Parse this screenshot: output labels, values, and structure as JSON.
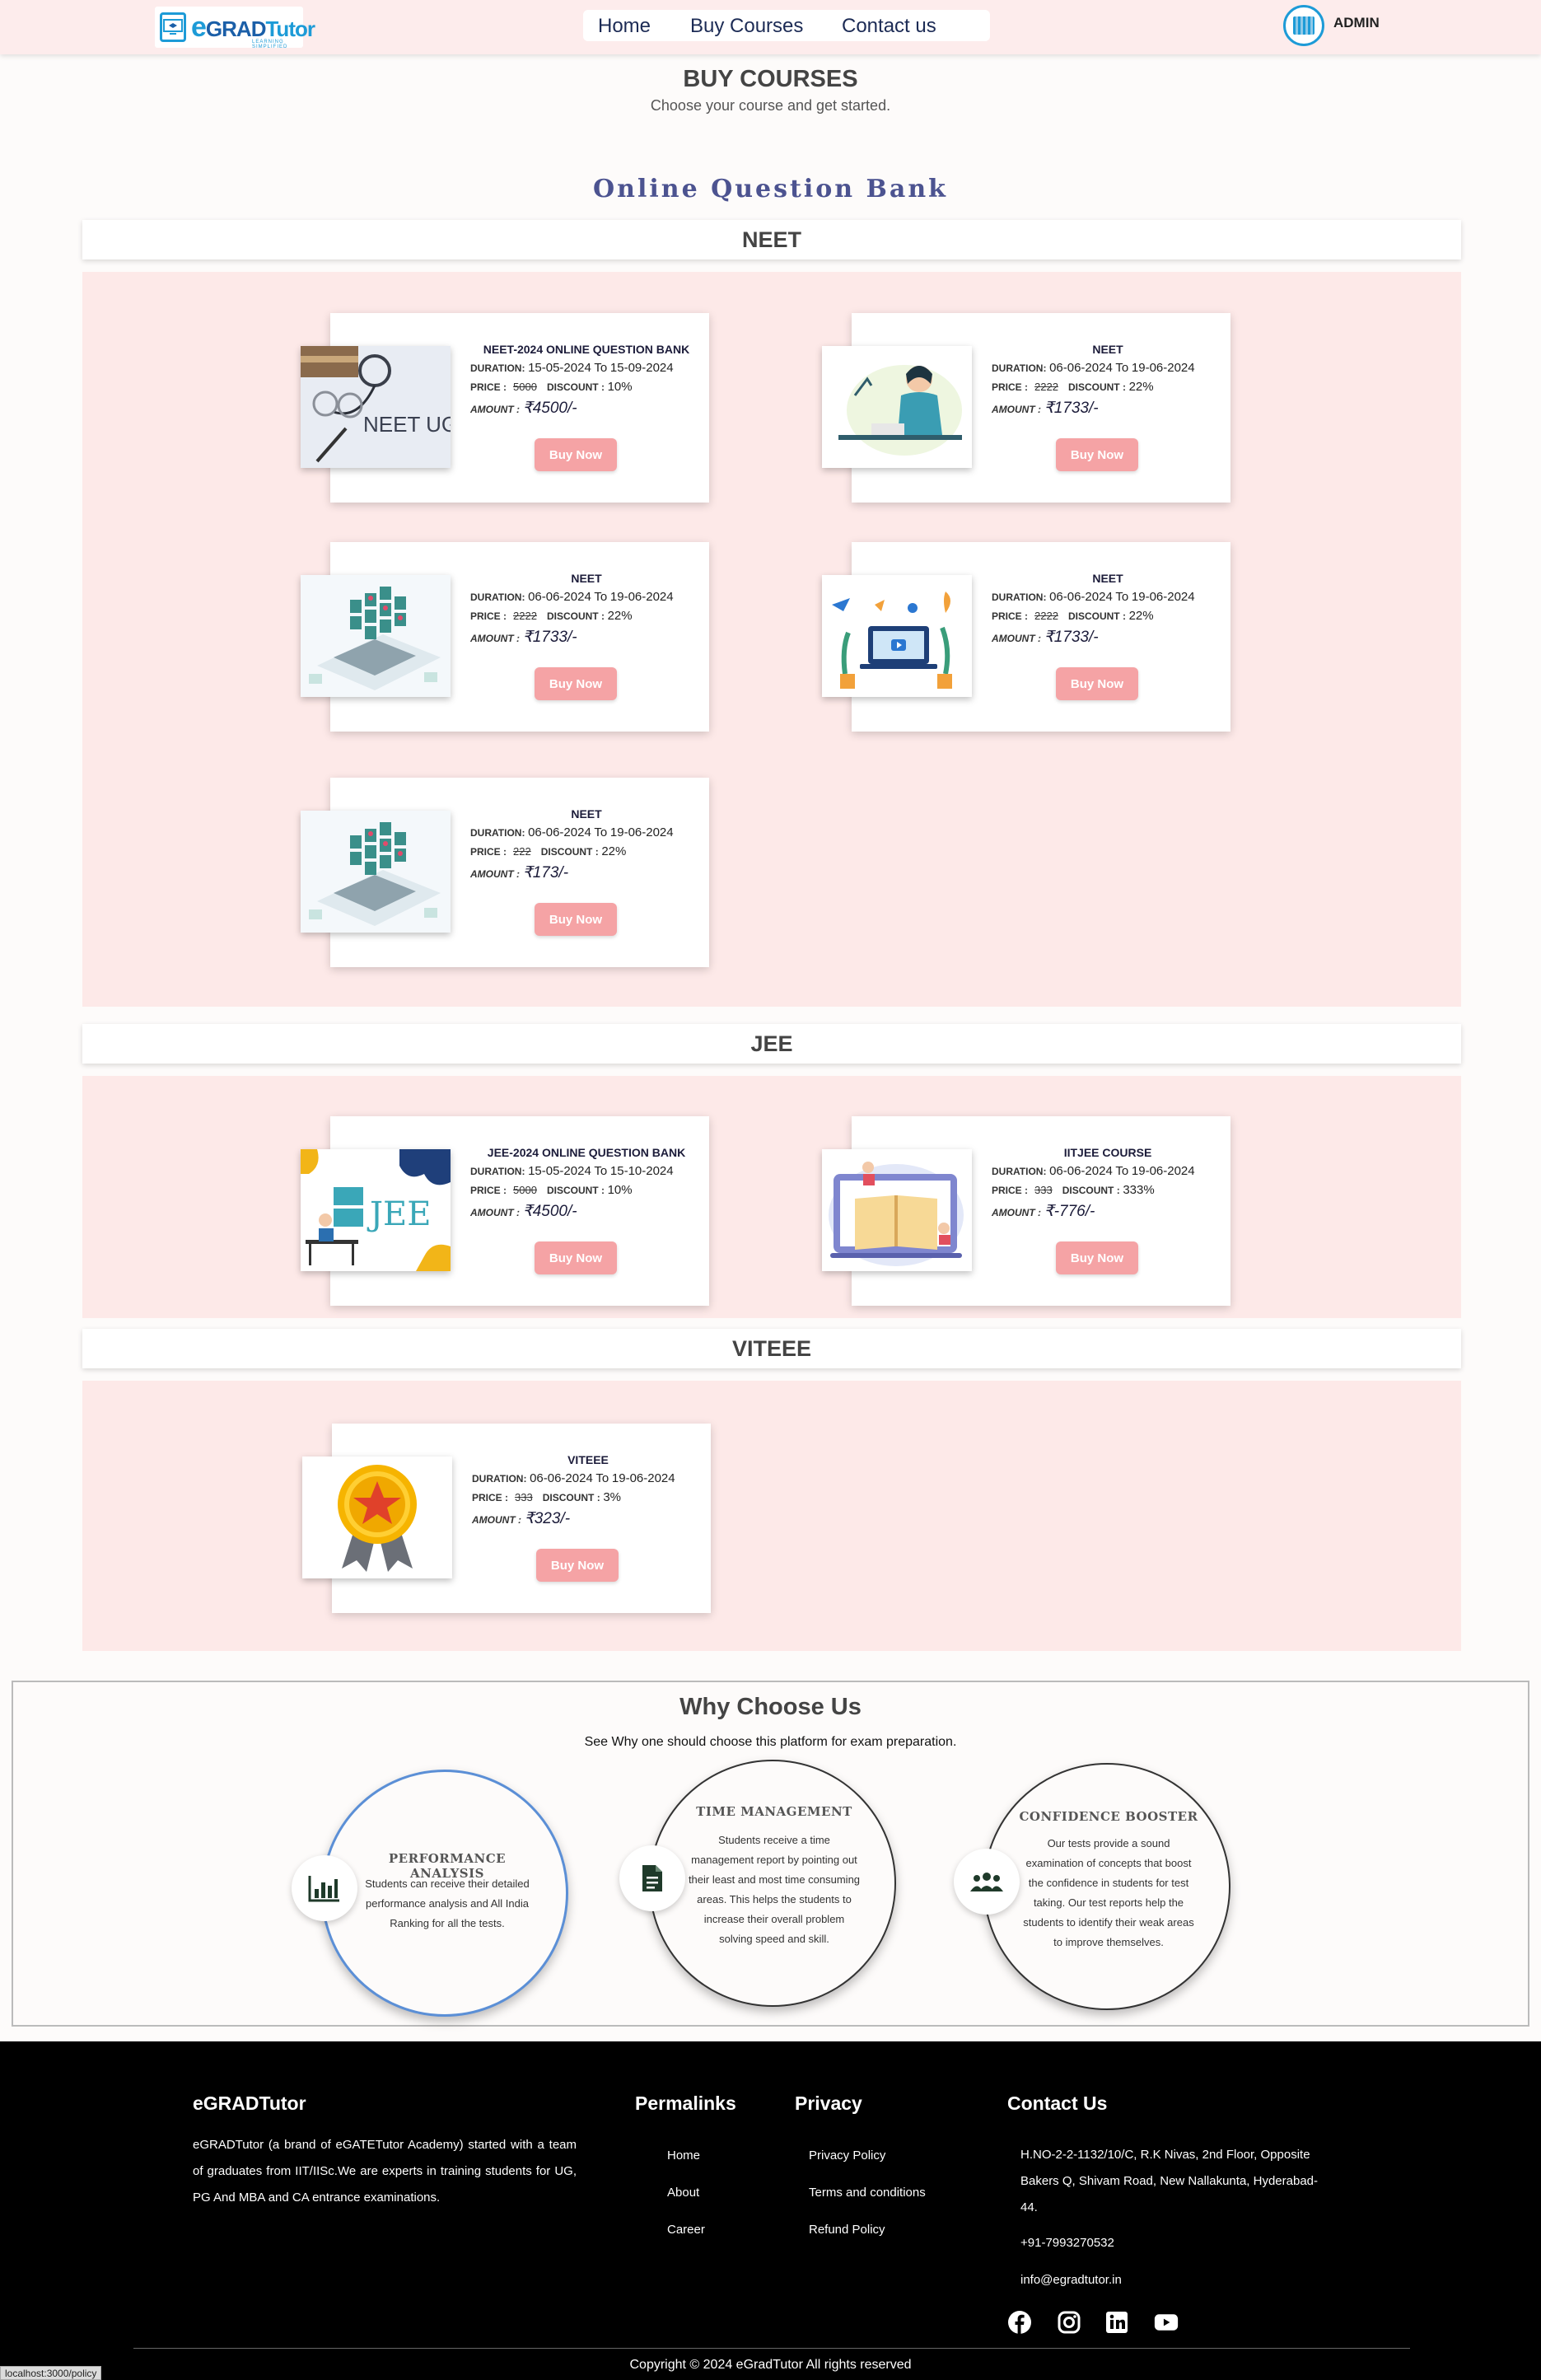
{
  "nav": {
    "logo_e": "e",
    "logo_grad": "GRAD",
    "logo_tutor": "Tutor",
    "logo_tagline": "LEARNING SIMPLIFIED",
    "home": "Home",
    "buy_courses": "Buy Courses",
    "contact_us": "Contact us",
    "admin": "ADMIN"
  },
  "header": {
    "title": "BUY COURSES",
    "subtitle": "Choose your course and get started.",
    "bank_title": "Online Question Bank"
  },
  "labels": {
    "duration": "DURATION:",
    "to": "To",
    "price": "PRICE :",
    "discount": "DISCOUNT :",
    "amount": "AMOUNT :",
    "buy_now": "Buy Now"
  },
  "sections": {
    "neet": {
      "title": "NEET",
      "courses": [
        {
          "name": "NEET-2024 ONLINE QUESTION BANK",
          "start": "15-05-2024",
          "end": "15-09-2024",
          "price": "5000",
          "discount": "10%",
          "amount": "₹4500/-",
          "image": "neet-ug-stethoscope-image"
        },
        {
          "name": "NEET",
          "start": "06-06-2024",
          "end": "19-06-2024",
          "price": "2222",
          "discount": "22%",
          "amount": "₹1733/-",
          "image": "student-studying-image"
        },
        {
          "name": "NEET",
          "start": "06-06-2024",
          "end": "19-06-2024",
          "price": "2222",
          "discount": "22%",
          "amount": "₹1733/-",
          "image": "online-test-laptop-image"
        },
        {
          "name": "NEET",
          "start": "06-06-2024",
          "end": "19-06-2024",
          "price": "2222",
          "discount": "22%",
          "amount": "₹1733/-",
          "image": "video-learning-laptop-image"
        },
        {
          "name": "NEET",
          "start": "06-06-2024",
          "end": "19-06-2024",
          "price": "222",
          "discount": "22%",
          "amount": "₹173/-",
          "image": "online-test-laptop-image"
        }
      ]
    },
    "jee": {
      "title": "JEE",
      "courses": [
        {
          "name": "JEE-2024 ONLINE QUESTION BANK",
          "start": "15-05-2024",
          "end": "15-10-2024",
          "price": "5000",
          "discount": "10%",
          "amount": "₹4500/-",
          "image": "jee-student-desk-image",
          "image_text": "JEE"
        },
        {
          "name": "IITJEE COURSE",
          "start": "06-06-2024",
          "end": "19-06-2024",
          "price": "333",
          "discount": "333%",
          "amount": "₹-776/-",
          "image": "book-on-laptop-image"
        }
      ]
    },
    "viteee": {
      "title": "VITEEE",
      "courses": [
        {
          "name": "VITEEE",
          "start": "06-06-2024",
          "end": "19-06-2024",
          "price": "333",
          "discount": "3%",
          "amount": "₹323/-",
          "image": "award-badge-image"
        }
      ]
    }
  },
  "why": {
    "title": "Why Choose Us",
    "subtitle": "See Why one should choose this platform for exam preparation.",
    "items": [
      {
        "heading": "PERFORMANCE ANALYSIS",
        "text": "Students can receive their detailed performance analysis and All India Ranking for all the tests.",
        "icon": "bar-chart-icon"
      },
      {
        "heading": "TIME MANAGEMENT",
        "text": "Students receive a time management report by pointing out their least and most time consuming areas. This helps the students to increase their overall problem solving speed and skill.",
        "icon": "document-icon"
      },
      {
        "heading": "CONFIDENCE BOOSTER",
        "text": "Our tests provide a sound examination of concepts that boost the confidence in students for test taking. Our test reports help the students to identify their weak areas to improve themselves.",
        "icon": "users-group-icon"
      }
    ]
  },
  "footer": {
    "brand": "eGRADTutor",
    "about": "eGRADTutor (a brand of eGATETutor Academy) started with a team of graduates from IIT/IISc.We are experts in training students for UG, PG And MBA and CA entrance examinations.",
    "permalinks_title": "Permalinks",
    "permalinks": [
      "Home",
      "About",
      "Career"
    ],
    "privacy_title": "Privacy",
    "privacy": [
      "Privacy Policy",
      "Terms and conditions",
      "Refund Policy"
    ],
    "contact_title": "Contact Us",
    "address": "H.NO-2-2-1132/10/C, R.K Nivas, 2nd Floor, Opposite Bakers Q, Shivam Road, New Nallakunta, Hyderabad-44.",
    "phone": "+91-7993270532",
    "email": "info@egradtutor.in",
    "social": [
      "facebook-icon",
      "instagram-icon",
      "linkedin-icon",
      "youtube-icon"
    ],
    "copyright": "Copyright © 2024 eGradTutor All rights reserved"
  },
  "status_url": "localhost:3000/policy",
  "colors": {
    "accent": "#1d9bd7",
    "button": "#f5a3a5",
    "section_bg": "#fde9e8",
    "nav_bg": "#fdecec"
  }
}
